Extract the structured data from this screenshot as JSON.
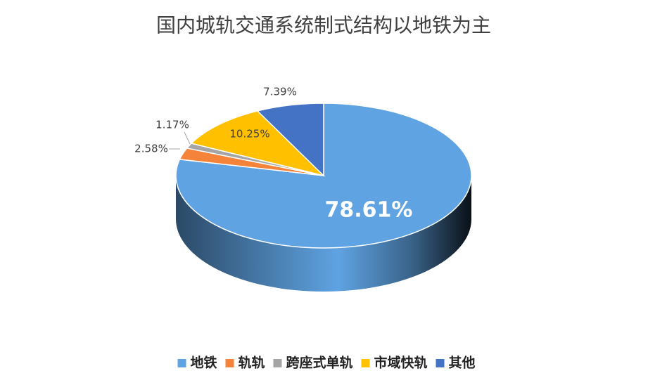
{
  "chart_data": {
    "type": "pie",
    "title": "国内城轨交通系统制式结构以地铁为主",
    "categories": [
      "地铁",
      "轨轨",
      "跨座式单轨",
      "市域快轨",
      "其他"
    ],
    "values": [
      78.61,
      2.58,
      1.17,
      10.25,
      7.39
    ],
    "value_labels": [
      "78.61%",
      "2.58%",
      "1.17%",
      "10.25%",
      "7.39%"
    ],
    "colors": [
      "#5fa3e2",
      "#f5843a",
      "#a5a5a5",
      "#ffc000",
      "#4472c4"
    ],
    "legend": "bottom"
  }
}
